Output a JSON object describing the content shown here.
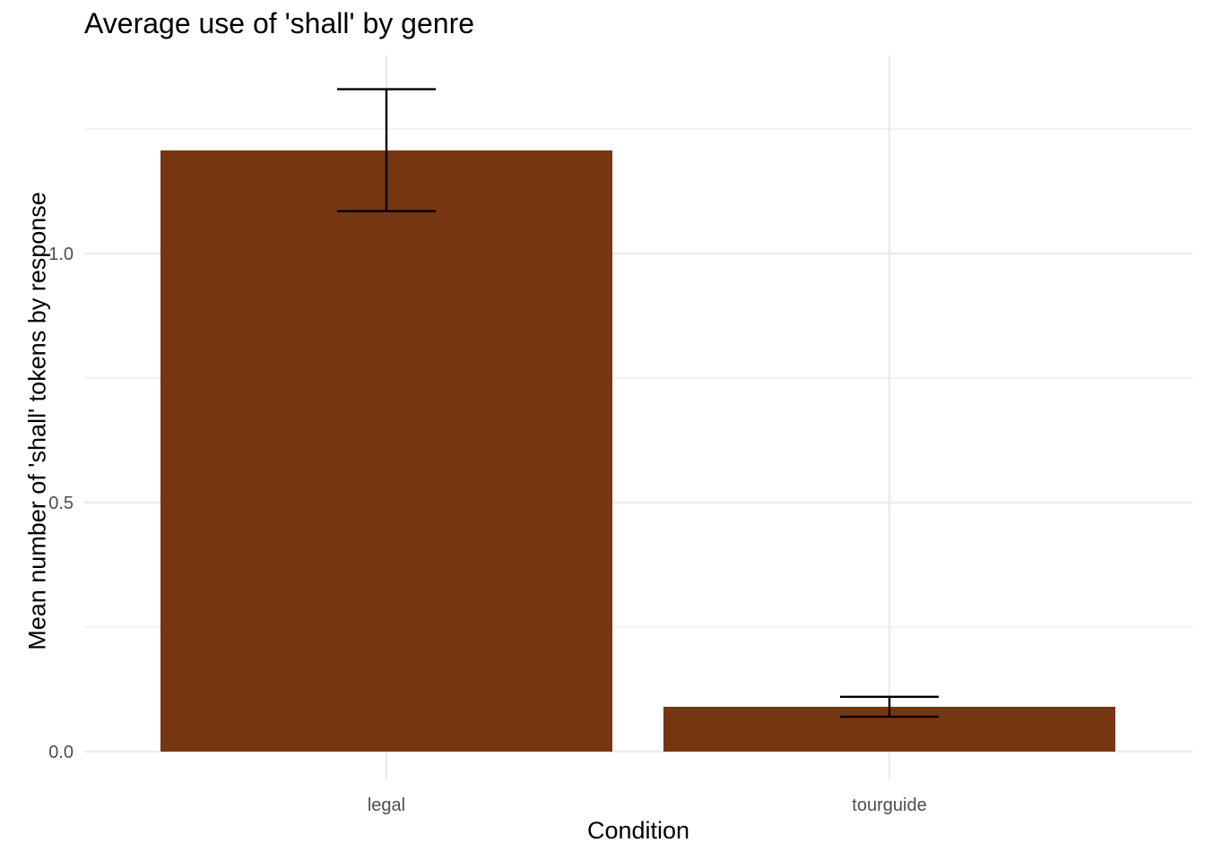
{
  "chart_data": {
    "type": "bar",
    "title": "Average use of 'shall' by genre",
    "xlabel": "Condition",
    "ylabel": "Mean number of 'shall' tokens by response",
    "categories": [
      "legal",
      "tourguide"
    ],
    "values": [
      1.207,
      0.09
    ],
    "error_bars": [
      {
        "lower": 1.085,
        "upper": 1.33
      },
      {
        "lower": 0.07,
        "upper": 0.11
      }
    ],
    "yticks": [
      "0.0",
      "0.5",
      "1.0"
    ],
    "ylim": [
      -0.05,
      1.4
    ],
    "grid": true,
    "legend": "none",
    "bar_color": "#773612",
    "grid_color": "#ebebeb"
  }
}
